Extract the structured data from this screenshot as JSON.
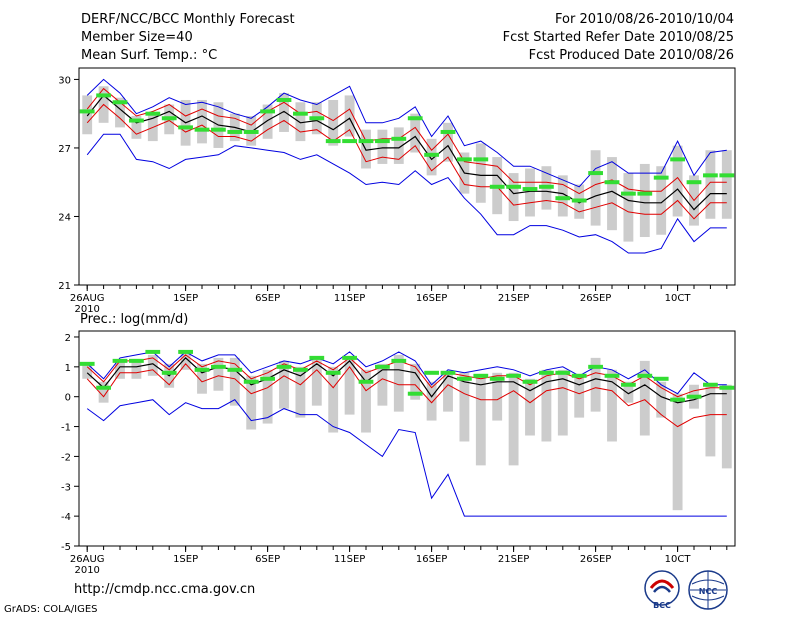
{
  "header": {
    "title": "DERF/NCC/BCC Monthly Forecast",
    "member": "Member Size=40",
    "variable": "Mean Surf. Temp.: °C",
    "period": "For 2010/08/26-2010/10/04",
    "started": "Fcst Started Refer Date 2010/08/25",
    "produced": "Fcst Produced Date 2010/08/26"
  },
  "footer": {
    "url": "http://cmdp.ncc.cma.gov.cn",
    "grads": "GrADS: COLA/IGES",
    "logo1_text": "BCC",
    "logo2_text": "NCC"
  },
  "colors": {
    "axis": "#000000",
    "spread_bar": "#cccccc",
    "ensemble_mean": "#000000",
    "envelope": "#0000e0",
    "std_band": "#e00000",
    "member_tick": "#33dd33"
  },
  "chart_data": [
    {
      "type": "line",
      "name": "temperature",
      "ylabel": "Mean Surf. Temp.: °C",
      "ylim": [
        21,
        30.5
      ],
      "yticks": [
        21,
        24,
        27,
        30
      ],
      "xlim": [
        -0.5,
        39.5
      ],
      "xticks": [
        {
          "day": 0,
          "label": "26AUG",
          "sub": "2010"
        },
        {
          "day": 6,
          "label": "1SEP"
        },
        {
          "day": 11,
          "label": "6SEP"
        },
        {
          "day": 16,
          "label": "11SEP"
        },
        {
          "day": 21,
          "label": "16SEP"
        },
        {
          "day": 26,
          "label": "21SEP"
        },
        {
          "day": 31,
          "label": "26SEP"
        },
        {
          "day": 36,
          "label": "10CT"
        }
      ],
      "mean": [
        28.4,
        29.3,
        28.7,
        28.1,
        28.3,
        28.6,
        28.1,
        28.4,
        28.0,
        27.9,
        27.7,
        28.2,
        28.6,
        28.1,
        28.2,
        27.8,
        28.3,
        26.9,
        27.0,
        27.0,
        27.5,
        26.5,
        27.1,
        25.9,
        25.8,
        25.8,
        25.0,
        25.1,
        25.1,
        25.0,
        24.6,
        24.9,
        25.1,
        24.7,
        24.6,
        24.6,
        25.2,
        24.3,
        25.0,
        25.0
      ],
      "upper": [
        29.3,
        30.0,
        29.4,
        28.5,
        28.8,
        29.2,
        28.9,
        29.0,
        28.8,
        28.5,
        28.3,
        28.8,
        29.4,
        29.1,
        28.9,
        29.3,
        29.7,
        28.1,
        28.1,
        28.3,
        28.8,
        27.5,
        28.4,
        27.1,
        27.3,
        26.8,
        26.2,
        26.2,
        25.9,
        25.6,
        25.3,
        26.1,
        26.4,
        25.9,
        25.9,
        25.9,
        27.3,
        25.8,
        26.8,
        26.9
      ],
      "lower": [
        26.7,
        27.6,
        27.6,
        26.5,
        26.4,
        26.1,
        26.5,
        26.6,
        26.7,
        27.1,
        27.0,
        26.9,
        26.8,
        26.5,
        26.7,
        26.3,
        25.9,
        25.4,
        25.5,
        25.4,
        26.0,
        25.4,
        25.7,
        24.8,
        24.1,
        23.2,
        23.2,
        23.6,
        23.6,
        23.4,
        23.1,
        23.2,
        22.9,
        22.4,
        22.4,
        22.6,
        23.9,
        22.9,
        23.5,
        23.5
      ],
      "sd_upper": [
        28.7,
        29.6,
        29.0,
        28.4,
        28.6,
        28.9,
        28.4,
        28.7,
        28.4,
        28.3,
        28.0,
        28.6,
        29.0,
        28.5,
        28.6,
        28.2,
        28.7,
        27.3,
        27.4,
        27.4,
        27.9,
        26.9,
        27.6,
        26.4,
        26.3,
        26.2,
        25.5,
        25.5,
        25.5,
        25.4,
        25.0,
        25.4,
        25.6,
        25.2,
        25.1,
        25.1,
        25.7,
        24.7,
        25.5,
        25.5
      ],
      "sd_lower": [
        28.1,
        28.9,
        28.3,
        27.6,
        27.9,
        28.2,
        27.7,
        28.0,
        27.5,
        27.5,
        27.3,
        27.8,
        28.2,
        27.7,
        27.8,
        27.3,
        27.8,
        26.4,
        26.6,
        26.5,
        27.1,
        26.0,
        26.6,
        25.4,
        25.3,
        25.3,
        24.5,
        24.6,
        24.7,
        24.6,
        24.2,
        24.4,
        24.6,
        24.2,
        24.1,
        24.1,
        24.7,
        23.9,
        24.6,
        24.6
      ],
      "bar_top": [
        29.3,
        29.7,
        29.2,
        28.4,
        28.5,
        28.9,
        29.1,
        29.1,
        29.0,
        28.5,
        28.4,
        28.9,
        29.4,
        29.0,
        29.0,
        29.1,
        29.3,
        27.8,
        27.8,
        27.9,
        28.5,
        27.4,
        28.1,
        26.8,
        27.2,
        26.6,
        25.9,
        26.1,
        26.2,
        25.8,
        25.4,
        26.9,
        26.6,
        25.9,
        26.3,
        26.2,
        27.1,
        25.8,
        26.9,
        26.9
      ],
      "bar_bot": [
        27.6,
        28.1,
        27.9,
        27.4,
        27.3,
        27.6,
        27.1,
        27.2,
        27.0,
        27.3,
        27.1,
        27.4,
        27.7,
        27.3,
        27.6,
        27.1,
        27.5,
        26.1,
        26.3,
        26.3,
        26.8,
        25.8,
        26.4,
        25.0,
        24.6,
        24.1,
        23.8,
        24.0,
        24.3,
        24.0,
        23.9,
        23.6,
        23.4,
        22.9,
        23.1,
        23.2,
        24.0,
        23.6,
        23.9,
        23.9
      ],
      "green": [
        28.6,
        29.3,
        29.0,
        28.2,
        28.5,
        28.3,
        27.9,
        27.8,
        27.8,
        27.7,
        27.7,
        28.6,
        29.1,
        28.5,
        28.3,
        27.3,
        27.3,
        27.3,
        27.3,
        27.4,
        28.3,
        26.7,
        27.7,
        26.5,
        26.5,
        25.3,
        25.3,
        25.2,
        25.3,
        24.8,
        24.7,
        25.9,
        25.5,
        25.0,
        25.0,
        25.7,
        26.5,
        25.5,
        25.8,
        25.8
      ]
    },
    {
      "type": "line",
      "name": "precipitation",
      "title": "Prec.: log(mm/d)",
      "ylim": [
        -5,
        2.2
      ],
      "yticks": [
        -5,
        -4,
        -3,
        -2,
        -1,
        0,
        1,
        2
      ],
      "xlim": [
        -0.5,
        39.5
      ],
      "xticks": [
        {
          "day": 0,
          "label": "26AUG",
          "sub": "2010"
        },
        {
          "day": 6,
          "label": "1SEP"
        },
        {
          "day": 11,
          "label": "6SEP"
        },
        {
          "day": 16,
          "label": "11SEP"
        },
        {
          "day": 21,
          "label": "16SEP"
        },
        {
          "day": 26,
          "label": "21SEP"
        },
        {
          "day": 31,
          "label": "26SEP"
        },
        {
          "day": 36,
          "label": "10CT"
        }
      ],
      "mean": [
        0.8,
        0.3,
        1.0,
        1.0,
        1.1,
        0.7,
        1.3,
        0.8,
        1.0,
        0.9,
        0.4,
        0.6,
        0.9,
        0.7,
        1.1,
        0.7,
        1.2,
        0.5,
        0.9,
        0.9,
        0.8,
        0.0,
        0.7,
        0.5,
        0.4,
        0.5,
        0.5,
        0.2,
        0.5,
        0.6,
        0.4,
        0.6,
        0.5,
        0.1,
        0.4,
        0.0,
        -0.2,
        -0.1,
        0.1,
        0.1
      ],
      "upper": [
        1.1,
        0.6,
        1.3,
        1.4,
        1.5,
        1.0,
        1.5,
        1.2,
        1.4,
        1.4,
        0.8,
        1.0,
        1.2,
        1.1,
        1.3,
        1.1,
        1.5,
        1.0,
        1.2,
        1.5,
        1.2,
        0.4,
        0.9,
        0.8,
        0.9,
        1.0,
        0.9,
        0.7,
        0.9,
        1.0,
        0.7,
        1.0,
        0.9,
        0.6,
        0.9,
        0.4,
        0.1,
        0.8,
        0.4,
        0.4
      ],
      "lower": [
        -0.4,
        -0.8,
        -0.3,
        -0.2,
        -0.1,
        -0.6,
        -0.2,
        -0.4,
        -0.4,
        -0.1,
        -0.8,
        -0.7,
        -0.4,
        -0.6,
        -0.6,
        -1.0,
        -1.2,
        -1.6,
        -2.0,
        -1.1,
        -1.2,
        -3.4,
        -2.6,
        -4.0,
        -4.0,
        -4.0,
        -4.0,
        -4.0,
        -4.0,
        -4.0,
        -4.0,
        -4.0,
        -4.0,
        -4.0,
        -4.0,
        -4.0,
        -4.0,
        -4.0,
        -4.0,
        -4.0
      ],
      "sd_upper": [
        1.0,
        0.5,
        1.2,
        1.2,
        1.3,
        0.9,
        1.4,
        1.0,
        1.2,
        1.1,
        0.6,
        0.8,
        1.1,
        0.9,
        1.2,
        0.9,
        1.3,
        0.8,
        1.0,
        1.2,
        1.0,
        0.3,
        0.8,
        0.7,
        0.6,
        0.7,
        0.7,
        0.4,
        0.7,
        0.8,
        0.6,
        0.8,
        0.7,
        0.4,
        0.7,
        0.3,
        0.0,
        0.2,
        0.3,
        0.3
      ],
      "sd_lower": [
        0.6,
        0.0,
        0.8,
        0.8,
        0.9,
        0.4,
        1.1,
        0.5,
        0.7,
        0.6,
        0.1,
        0.3,
        0.7,
        0.4,
        0.9,
        0.3,
        1.0,
        0.2,
        0.6,
        0.4,
        0.4,
        -0.2,
        0.4,
        0.1,
        -0.1,
        -0.1,
        0.2,
        -0.2,
        0.2,
        0.3,
        0.1,
        0.3,
        0.2,
        -0.3,
        -0.1,
        -0.6,
        -1.0,
        -0.7,
        -0.6,
        -0.6
      ],
      "bar_top": [
        1.1,
        0.5,
        1.2,
        1.2,
        1.4,
        1.1,
        1.5,
        1.1,
        1.3,
        1.3,
        0.7,
        0.9,
        1.2,
        1.0,
        1.3,
        1.0,
        1.3,
        0.9,
        1.1,
        1.4,
        1.1,
        0.5,
        0.8,
        0.8,
        0.7,
        0.8,
        0.8,
        0.6,
        0.9,
        0.9,
        0.7,
        1.3,
        0.9,
        0.5,
        1.2,
        0.5,
        0.1,
        0.4,
        0.4,
        0.4
      ],
      "bar_bot": [
        0.6,
        -0.2,
        0.6,
        0.6,
        0.7,
        0.3,
        0.9,
        0.1,
        0.2,
        -0.3,
        -1.1,
        -0.9,
        -0.4,
        -0.7,
        -0.3,
        -1.2,
        -0.6,
        -1.2,
        -0.3,
        -0.5,
        -0.1,
        -0.8,
        -0.5,
        -1.5,
        -2.3,
        -0.8,
        -2.3,
        -1.3,
        -1.5,
        -1.3,
        -0.7,
        -0.5,
        -1.5,
        -0.2,
        -1.3,
        -0.7,
        -3.8,
        -0.4,
        -2.0,
        -2.4
      ],
      "green": [
        1.1,
        0.3,
        1.2,
        1.2,
        1.5,
        0.8,
        1.5,
        0.9,
        1.0,
        0.9,
        0.5,
        0.6,
        1.0,
        0.9,
        1.3,
        0.8,
        1.3,
        0.5,
        1.0,
        1.2,
        0.1,
        0.8,
        0.8,
        0.6,
        0.7,
        0.6,
        0.7,
        0.5,
        0.8,
        0.8,
        0.7,
        1.0,
        0.7,
        0.4,
        0.7,
        0.6,
        -0.1,
        0.0,
        0.4,
        0.3
      ]
    }
  ]
}
